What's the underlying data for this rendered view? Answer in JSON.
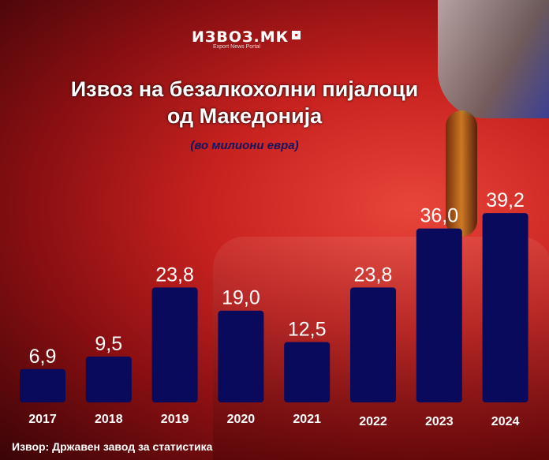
{
  "logo": {
    "name": "ИЗВОЗ.МК",
    "tagline": "Export News Portal"
  },
  "chart_data": {
    "type": "bar",
    "title": "Извоз на безалкохолни пијалоци од Македонија",
    "title_lines": [
      "Извоз на безалкохолни пијалоци",
      "од Македонија"
    ],
    "subtitle": "(во милиони евра)",
    "categories": [
      "2017",
      "2018",
      "2019",
      "2020",
      "2021",
      "2022",
      "2023",
      "2024"
    ],
    "values": [
      6.9,
      9.5,
      23.8,
      19.0,
      12.5,
      23.8,
      36.0,
      39.2
    ],
    "value_labels": [
      "6,9",
      "9,5",
      "23,8",
      "19,0",
      "12,5",
      "23,8",
      "36,0",
      "39,2"
    ],
    "ylim": [
      0,
      40
    ],
    "grid": false,
    "bar_color": "#0a0a5c",
    "label_color": "#ffffff"
  },
  "source": "Извор: Државен завод за статистика"
}
